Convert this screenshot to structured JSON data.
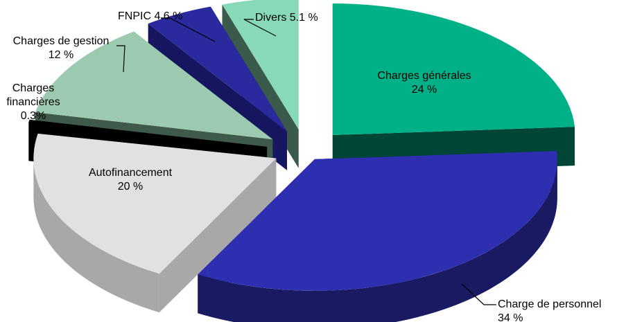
{
  "chart_data": {
    "type": "pie",
    "title": "",
    "exploded": true,
    "three_d": true,
    "slices": [
      {
        "label_lines": [
          "Charges générales",
          "24 %"
        ],
        "value": 24,
        "color": "#00B086",
        "side_color": "#004535"
      },
      {
        "label_lines": [
          "Charge de personnel",
          "34 %"
        ],
        "value": 34,
        "color": "#2E2EB0",
        "side_color": "#191A62"
      },
      {
        "label_lines": [
          "Autofinancement",
          "20 %"
        ],
        "value": 20,
        "color": "#E1E1E1",
        "side_color": "#A8A8A8"
      },
      {
        "label_lines": [
          "Charges",
          "financières",
          "0.3%"
        ],
        "value": 0.3,
        "color": "#000000",
        "side_color": "#000000"
      },
      {
        "label_lines": [
          "Charges de gestion",
          "12 %"
        ],
        "value": 12,
        "color": "#9CCAB0",
        "side_color": "#3F5A4B"
      },
      {
        "label_lines": [
          "FNPIC  4.6 %"
        ],
        "value": 4.6,
        "color": "#2A2A9E",
        "side_color": "#151560"
      },
      {
        "label_lines": [
          "Divers  5.1 %"
        ],
        "value": 5.1,
        "color": "#88D9B8",
        "side_color": "#3A5A4C"
      }
    ]
  }
}
